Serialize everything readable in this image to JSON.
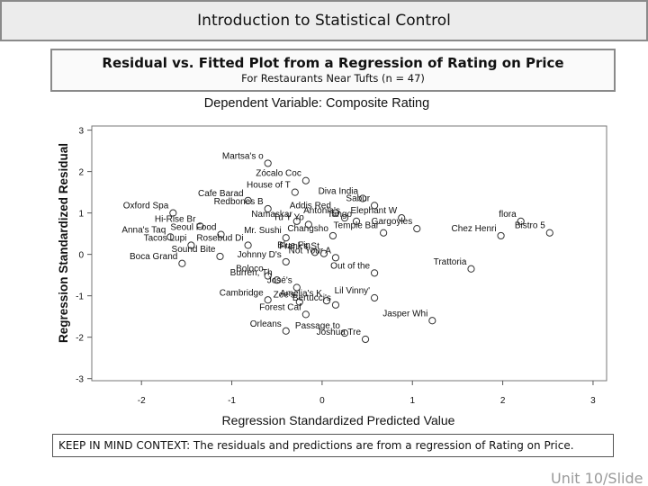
{
  "slide": {
    "title": "Introduction to Statistical Control",
    "context": "KEEP IN MIND CONTEXT: The residuals and predictions are from a regression of Rating on Price.",
    "footer": "Unit 10/Slide"
  },
  "plot_header": {
    "title": "Residual vs. Fitted Plot from a Regression of Rating on Price",
    "subtitle": "For Restaurants Near Tufts (n = 47)"
  },
  "chart_data": {
    "type": "scatter",
    "title": "Dependent Variable: Composite Rating",
    "xlabel": "Regression Standardized Predicted Value",
    "ylabel": "Regression Standardized Residual",
    "xlim": [
      -2.55,
      3.15
    ],
    "ylim": [
      -3.05,
      3.1
    ],
    "xticks": [
      "-2",
      "-1",
      "0",
      "1",
      "2",
      "3"
    ],
    "yticks": [
      "3",
      "2",
      "1",
      "0",
      "-1",
      "-2",
      "-3"
    ],
    "grid": false,
    "points": [
      {
        "label": "Martsa's o",
        "x": -0.6,
        "y": 2.2
      },
      {
        "label": "Zócalo Coc",
        "x": -0.18,
        "y": 1.78
      },
      {
        "label": "House of T",
        "x": -0.3,
        "y": 1.5
      },
      {
        "label": "Diva India",
        "x": 0.45,
        "y": 1.35
      },
      {
        "label": "Sabur",
        "x": 0.58,
        "y": 1.18
      },
      {
        "label": "Cafe Barad",
        "x": -0.82,
        "y": 1.3
      },
      {
        "label": "Redbones B",
        "x": -0.6,
        "y": 1.1
      },
      {
        "label": "Addis Red",
        "x": 0.15,
        "y": 1.0
      },
      {
        "label": "Oxford Spa",
        "x": -1.65,
        "y": 1.0
      },
      {
        "label": "Hi-Rise Br",
        "x": -1.35,
        "y": 0.68
      },
      {
        "label": "Namaskar",
        "x": -0.28,
        "y": 0.8
      },
      {
        "label": "Antonia's",
        "x": 0.25,
        "y": 0.88
      },
      {
        "label": "Elephant W",
        "x": 0.88,
        "y": 0.88
      },
      {
        "label": "Anna's Taq",
        "x": -1.68,
        "y": 0.42
      },
      {
        "label": "Tu Y Yo",
        "x": -0.15,
        "y": 0.72
      },
      {
        "label": "Tango",
        "x": 0.38,
        "y": 0.8
      },
      {
        "label": "flora",
        "x": 2.2,
        "y": 0.8
      },
      {
        "label": "Bistro 5",
        "x": 2.52,
        "y": 0.52
      },
      {
        "label": "Seoul Food",
        "x": -1.12,
        "y": 0.48
      },
      {
        "label": "Changsho",
        "x": 0.12,
        "y": 0.45
      },
      {
        "label": "Chez Henri",
        "x": 1.98,
        "y": 0.45
      },
      {
        "label": "Tacos Lupi",
        "x": -1.45,
        "y": 0.22
      },
      {
        "label": "Rosebud Di",
        "x": -0.82,
        "y": 0.22
      },
      {
        "label": "Temple Bar",
        "x": 0.68,
        "y": 0.52
      },
      {
        "label": "Mr. Sushi",
        "x": -0.4,
        "y": 0.4
      },
      {
        "label": "Blue Fin",
        "x": -0.08,
        "y": 0.05
      },
      {
        "label": "Gargoyles",
        "x": 1.05,
        "y": 0.62
      },
      {
        "label": "Sound Bite",
        "x": -1.13,
        "y": -0.05
      },
      {
        "label": "Johnny D's",
        "x": -0.4,
        "y": -0.18
      },
      {
        "label": "Trattoria",
        "x": 1.65,
        "y": -0.35
      },
      {
        "label": "Boca Grand",
        "x": -1.55,
        "y": -0.22
      },
      {
        "label": "Boloco",
        "x": -0.6,
        "y": -0.52
      },
      {
        "label": "Not Your A",
        "x": 0.15,
        "y": -0.08
      },
      {
        "label": "Burren, Th",
        "x": -0.5,
        "y": -0.62
      },
      {
        "label": "José's",
        "x": -0.28,
        "y": -0.8
      },
      {
        "label": "Out of the",
        "x": 0.58,
        "y": -0.45
      },
      {
        "label": "Cambridge",
        "x": -0.6,
        "y": -1.1
      },
      {
        "label": "Amelia's K",
        "x": 0.05,
        "y": -1.12
      },
      {
        "label": "Lil Vinny'",
        "x": 0.58,
        "y": -1.05
      },
      {
        "label": "Zoe's",
        "x": -0.25,
        "y": -1.15
      },
      {
        "label": "Bertucci's",
        "x": 0.15,
        "y": -1.22
      },
      {
        "label": "Jasper Whi",
        "x": 1.22,
        "y": -1.6
      },
      {
        "label": "Forest Caf",
        "x": -0.18,
        "y": -1.45
      },
      {
        "label": "Passage to",
        "x": 0.25,
        "y": -1.9
      },
      {
        "label": "Orleans",
        "x": -0.4,
        "y": -1.85
      },
      {
        "label": "Joshua Tre",
        "x": 0.48,
        "y": -2.05
      },
      {
        "label": "Frank's St",
        "x": 0.02,
        "y": 0.02
      }
    ]
  }
}
